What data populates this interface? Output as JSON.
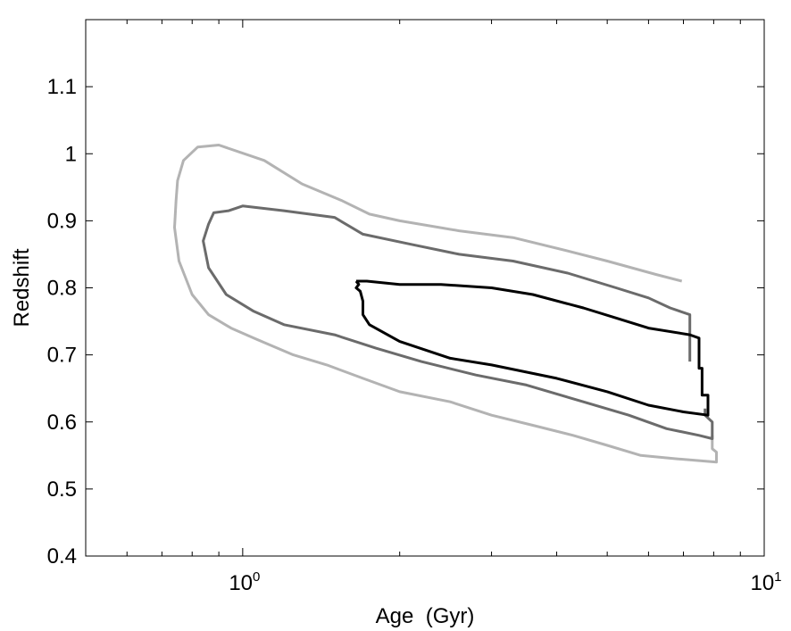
{
  "chart_data": {
    "type": "line",
    "title": "",
    "xlabel": "Age  (Gyr)",
    "ylabel": "Redshift",
    "xscale": "log",
    "xlim": [
      0.5,
      10
    ],
    "ylim": [
      0.4,
      1.2
    ],
    "grid": false,
    "x_ticks": [
      {
        "value": 1,
        "base": "10",
        "exp": "0"
      },
      {
        "value": 10,
        "base": "10",
        "exp": "1"
      }
    ],
    "x_minor_ticks": [
      0.6,
      0.7,
      0.8,
      0.9,
      2,
      3,
      4,
      5,
      6,
      7,
      8,
      9
    ],
    "y_ticks": [
      {
        "value": 0.4,
        "label": "0.4"
      },
      {
        "value": 0.5,
        "label": "0.5"
      },
      {
        "value": 0.6,
        "label": "0.6"
      },
      {
        "value": 0.7,
        "label": "0.7"
      },
      {
        "value": 0.8,
        "label": "0.8"
      },
      {
        "value": 0.9,
        "label": "0.9"
      },
      {
        "value": 1.0,
        "label": "1"
      },
      {
        "value": 1.1,
        "label": "1.1"
      }
    ],
    "series": [
      {
        "color": "#b3b3b3",
        "points": [
          [
            6.95,
            0.81
          ],
          [
            6.2,
            0.82
          ],
          [
            5.0,
            0.84
          ],
          [
            4.2,
            0.855
          ],
          [
            3.3,
            0.875
          ],
          [
            2.6,
            0.885
          ],
          [
            2.0,
            0.9
          ],
          [
            1.75,
            0.91
          ],
          [
            1.55,
            0.93
          ],
          [
            1.3,
            0.955
          ],
          [
            1.1,
            0.99
          ],
          [
            0.9,
            1.013
          ],
          [
            0.82,
            1.01
          ],
          [
            0.77,
            0.99
          ],
          [
            0.75,
            0.96
          ],
          [
            0.745,
            0.93
          ],
          [
            0.74,
            0.89
          ],
          [
            0.755,
            0.84
          ],
          [
            0.8,
            0.79
          ],
          [
            0.86,
            0.76
          ],
          [
            0.95,
            0.74
          ],
          [
            1.05,
            0.725
          ],
          [
            1.25,
            0.7
          ],
          [
            1.45,
            0.685
          ],
          [
            1.7,
            0.665
          ],
          [
            2.0,
            0.645
          ],
          [
            2.5,
            0.63
          ],
          [
            3.0,
            0.61
          ],
          [
            3.6,
            0.595
          ],
          [
            4.3,
            0.58
          ],
          [
            5.0,
            0.565
          ],
          [
            5.8,
            0.55
          ],
          [
            6.8,
            0.545
          ],
          [
            8.1,
            0.54
          ],
          [
            8.1,
            0.555
          ],
          [
            7.95,
            0.56
          ],
          [
            7.95,
            0.58
          ]
        ]
      },
      {
        "color": "#6b6b6b",
        "points": [
          [
            7.2,
            0.69
          ],
          [
            7.2,
            0.76
          ],
          [
            6.6,
            0.77
          ],
          [
            6.0,
            0.785
          ],
          [
            5.2,
            0.8
          ],
          [
            4.2,
            0.822
          ],
          [
            3.3,
            0.84
          ],
          [
            2.6,
            0.85
          ],
          [
            2.1,
            0.865
          ],
          [
            1.7,
            0.88
          ],
          [
            1.5,
            0.905
          ],
          [
            1.2,
            0.915
          ],
          [
            1.0,
            0.922
          ],
          [
            0.94,
            0.915
          ],
          [
            0.88,
            0.912
          ],
          [
            0.86,
            0.895
          ],
          [
            0.84,
            0.87
          ],
          [
            0.86,
            0.83
          ],
          [
            0.93,
            0.79
          ],
          [
            1.05,
            0.765
          ],
          [
            1.2,
            0.745
          ],
          [
            1.5,
            0.73
          ],
          [
            1.8,
            0.71
          ],
          [
            2.2,
            0.69
          ],
          [
            2.8,
            0.67
          ],
          [
            3.5,
            0.655
          ],
          [
            4.5,
            0.63
          ],
          [
            5.5,
            0.61
          ],
          [
            6.5,
            0.59
          ],
          [
            7.5,
            0.58
          ],
          [
            7.95,
            0.575
          ],
          [
            7.95,
            0.6
          ],
          [
            7.7,
            0.61
          ],
          [
            7.7,
            0.62
          ]
        ]
      },
      {
        "color": "#000000",
        "points": [
          [
            1.65,
            0.81
          ],
          [
            1.73,
            0.81
          ],
          [
            2.0,
            0.805
          ],
          [
            2.4,
            0.805
          ],
          [
            3.0,
            0.8
          ],
          [
            3.6,
            0.79
          ],
          [
            4.5,
            0.77
          ],
          [
            5.2,
            0.755
          ],
          [
            6.0,
            0.74
          ],
          [
            7.2,
            0.73
          ],
          [
            7.5,
            0.725
          ],
          [
            7.5,
            0.68
          ],
          [
            7.6,
            0.68
          ],
          [
            7.6,
            0.64
          ],
          [
            7.8,
            0.64
          ],
          [
            7.8,
            0.61
          ],
          [
            7.0,
            0.615
          ],
          [
            6.0,
            0.625
          ],
          [
            5.0,
            0.645
          ],
          [
            4.0,
            0.665
          ],
          [
            3.0,
            0.685
          ],
          [
            2.5,
            0.695
          ],
          [
            2.0,
            0.72
          ],
          [
            1.75,
            0.745
          ],
          [
            1.7,
            0.76
          ],
          [
            1.7,
            0.78
          ],
          [
            1.68,
            0.795
          ],
          [
            1.65,
            0.8
          ],
          [
            1.67,
            0.805
          ],
          [
            1.65,
            0.81
          ]
        ]
      }
    ]
  }
}
